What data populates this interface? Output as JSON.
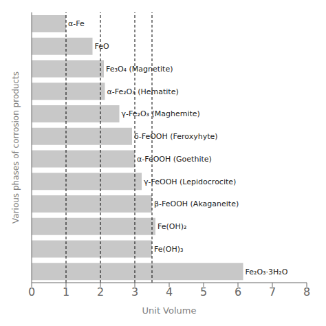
{
  "chart_data": {
    "type": "bar",
    "orientation": "horizontal",
    "categories": [
      "α-Fe",
      "FeO",
      "Fe₃O₄ (Magnetite)",
      "α-Fe₂O₃ (Hematite)",
      "γ-Fe₂O₃ (Maghemite)",
      "δ-FeOOH (Feroxyhyte)",
      "α-FeOOH (Goethite)",
      "γ-FeOOH (Lepidocrocite)",
      "β-FeOOH (Akaganeite)",
      "Fe(OH)₂",
      "Fe(OH)₃",
      "Fe₂O₃·3H₂O"
    ],
    "values": [
      1.0,
      1.77,
      2.1,
      2.13,
      2.55,
      2.92,
      3.0,
      3.2,
      3.5,
      3.6,
      3.5,
      6.15
    ],
    "color": "#c8c8c8",
    "xlim": [
      0,
      8
    ],
    "xticks": [
      0,
      1,
      2,
      3,
      4,
      5,
      6,
      7,
      8
    ],
    "xlabel": "Unit Volume",
    "ylabel": "Various phases of corrosion products",
    "dashed_lines": [
      1.0,
      2.0,
      3.0,
      3.5
    ],
    "grid": false,
    "tick_labels": "x"
  }
}
